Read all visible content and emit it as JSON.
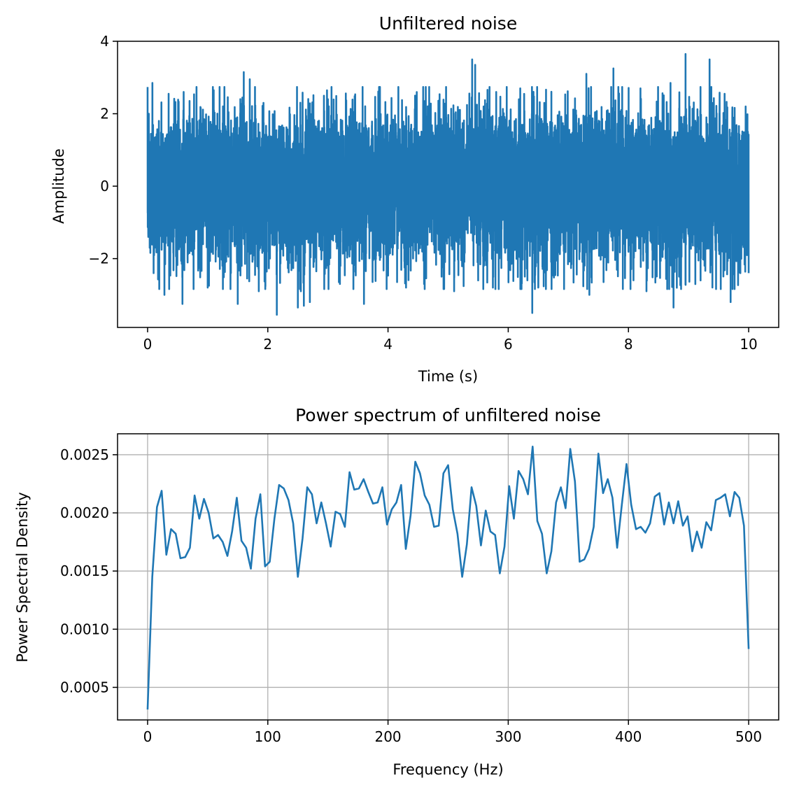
{
  "colors": {
    "series": "#1f77b4",
    "grid": "#b0b0b0",
    "axis": "#000000"
  },
  "chart_data": [
    {
      "type": "line",
      "title": "Unfiltered noise",
      "xlabel": "Time (s)",
      "ylabel": "Amplitude",
      "xlim": [
        -0.5,
        10.5
      ],
      "ylim": [
        -3.9,
        4.0
      ],
      "xticks": [
        0,
        2,
        4,
        6,
        8,
        10
      ],
      "xtick_labels": [
        "0",
        "2",
        "4",
        "6",
        "8",
        "10"
      ],
      "yticks": [
        -2,
        0,
        2,
        4
      ],
      "ytick_labels": [
        "−2",
        "0",
        "2",
        "4"
      ],
      "grid": false,
      "series": [
        {
          "x_start": 0,
          "x_end": 10,
          "sample_rate_hz": 1000,
          "typical_range": [
            -2.0,
            2.0
          ],
          "peaks": [
            [
              0.02,
              2.0
            ],
            [
              0.08,
              2.85
            ],
            [
              0.35,
              2.55
            ],
            [
              0.6,
              2.6
            ],
            [
              1.1,
              2.65
            ],
            [
              1.6,
              3.15
            ],
            [
              1.7,
              2.95
            ],
            [
              2.55,
              2.85
            ],
            [
              3.0,
              2.4
            ],
            [
              3.6,
              2.55
            ],
            [
              4.45,
              2.5
            ],
            [
              5.4,
              3.5
            ],
            [
              5.45,
              3.35
            ],
            [
              5.8,
              2.6
            ],
            [
              6.2,
              2.7
            ],
            [
              6.6,
              2.3
            ],
            [
              7.3,
              3.1
            ],
            [
              7.75,
              3.25
            ],
            [
              8.2,
              2.7
            ],
            [
              8.7,
              2.85
            ],
            [
              8.95,
              3.65
            ],
            [
              9.35,
              3.5
            ],
            [
              9.6,
              2.55
            ],
            [
              9.95,
              2.2
            ]
          ],
          "troughs": [
            [
              0.1,
              -2.4
            ],
            [
              0.28,
              -3.0
            ],
            [
              0.58,
              -3.25
            ],
            [
              1.0,
              -2.8
            ],
            [
              1.5,
              -3.25
            ],
            [
              1.85,
              -2.9
            ],
            [
              2.15,
              -3.55
            ],
            [
              2.5,
              -3.35
            ],
            [
              2.55,
              -2.9
            ],
            [
              2.6,
              -3.3
            ],
            [
              2.7,
              -3.2
            ],
            [
              3.2,
              -2.7
            ],
            [
              3.6,
              -3.25
            ],
            [
              4.3,
              -2.8
            ],
            [
              4.6,
              -2.7
            ],
            [
              5.1,
              -2.9
            ],
            [
              5.5,
              -2.6
            ],
            [
              6.4,
              -3.5
            ],
            [
              6.5,
              -2.8
            ],
            [
              7.35,
              -3.0
            ],
            [
              8.3,
              -2.9
            ],
            [
              8.75,
              -3.35
            ],
            [
              9.2,
              -2.6
            ],
            [
              9.7,
              -3.2
            ],
            [
              10.0,
              -2.4
            ]
          ]
        }
      ]
    },
    {
      "type": "line",
      "title": "Power spectrum of unfiltered noise",
      "xlabel": "Frequency (Hz)",
      "ylabel": "Power Spectral Density",
      "xlim": [
        -25,
        525
      ],
      "ylim": [
        0.00022,
        0.00268
      ],
      "xticks": [
        0,
        100,
        200,
        300,
        400,
        500
      ],
      "xtick_labels": [
        "0",
        "100",
        "200",
        "300",
        "400",
        "500"
      ],
      "yticks": [
        0.0005,
        0.001,
        0.0015,
        0.002,
        0.0025
      ],
      "ytick_labels": [
        "0.0005",
        "0.0010",
        "0.0015",
        "0.0020",
        "0.0025"
      ],
      "grid": true,
      "series": [
        {
          "x": [
            0,
            3.9,
            7.8,
            11.7,
            15.6,
            19.5,
            23.4,
            27.3,
            31.3,
            35.2,
            39.1,
            43.0,
            46.9,
            50.8,
            54.7,
            58.6,
            62.5,
            66.4,
            70.3,
            74.2,
            78.1,
            82.0,
            85.9,
            89.8,
            93.8,
            97.7,
            101.6,
            105.5,
            109.4,
            113.3,
            117.2,
            121.1,
            125.0,
            128.9,
            132.8,
            136.7,
            140.6,
            144.5,
            148.4,
            152.3,
            156.3,
            160.2,
            164.1,
            168.0,
            171.9,
            175.8,
            179.7,
            183.6,
            187.5,
            191.4,
            195.3,
            199.2,
            203.1,
            207.0,
            210.9,
            214.8,
            218.8,
            222.7,
            226.6,
            230.5,
            234.4,
            238.3,
            242.2,
            246.1,
            250.0,
            253.9,
            257.8,
            261.7,
            265.6,
            269.5,
            273.4,
            277.3,
            281.3,
            285.2,
            289.1,
            293.0,
            296.9,
            300.8,
            304.7,
            308.6,
            312.5,
            316.4,
            320.3,
            324.2,
            328.1,
            332.0,
            335.9,
            339.8,
            343.8,
            347.7,
            351.6,
            355.5,
            359.4,
            363.3,
            367.2,
            371.1,
            375.0,
            378.9,
            382.8,
            386.7,
            390.6,
            394.5,
            398.4,
            402.3,
            406.3,
            410.2,
            414.1,
            418.0,
            421.9,
            425.8,
            429.7,
            433.6,
            437.5,
            441.4,
            445.3,
            449.2,
            453.1,
            457.0,
            460.9,
            464.8,
            468.8,
            472.7,
            476.6,
            480.5,
            484.4,
            488.3,
            492.2,
            496.1,
            500.0
          ],
          "values": [
            0.00031,
            0.00145,
            0.00205,
            0.00219,
            0.00164,
            0.00186,
            0.00182,
            0.00161,
            0.00162,
            0.0017,
            0.00215,
            0.00195,
            0.00212,
            0.002,
            0.00178,
            0.00181,
            0.00175,
            0.00163,
            0.00184,
            0.00213,
            0.00176,
            0.0017,
            0.00152,
            0.00195,
            0.00216,
            0.00154,
            0.00158,
            0.00195,
            0.00224,
            0.00221,
            0.00211,
            0.00191,
            0.00145,
            0.00178,
            0.00222,
            0.00216,
            0.00191,
            0.00209,
            0.00191,
            0.00171,
            0.00201,
            0.00199,
            0.00188,
            0.00235,
            0.0022,
            0.00221,
            0.00229,
            0.00218,
            0.00208,
            0.00209,
            0.00222,
            0.0019,
            0.00203,
            0.00209,
            0.00224,
            0.00169,
            0.00198,
            0.00244,
            0.00234,
            0.00215,
            0.00207,
            0.00188,
            0.00189,
            0.00234,
            0.00241,
            0.00203,
            0.00182,
            0.00145,
            0.00173,
            0.00222,
            0.00206,
            0.00172,
            0.00202,
            0.00184,
            0.00181,
            0.00148,
            0.00171,
            0.00223,
            0.00195,
            0.00236,
            0.00229,
            0.00216,
            0.00257,
            0.00193,
            0.00182,
            0.00148,
            0.00167,
            0.00209,
            0.00222,
            0.00204,
            0.00255,
            0.00227,
            0.00158,
            0.0016,
            0.00169,
            0.00188,
            0.00251,
            0.00217,
            0.00229,
            0.00213,
            0.0017,
            0.00207,
            0.00242,
            0.00207,
            0.00186,
            0.00188,
            0.00183,
            0.00191,
            0.00214,
            0.00217,
            0.0019,
            0.00209,
            0.00191,
            0.0021,
            0.00189,
            0.00197,
            0.00167,
            0.00184,
            0.0017,
            0.00192,
            0.00185,
            0.00211,
            0.00213,
            0.00216,
            0.00197,
            0.00218,
            0.00213,
            0.00189,
            0.00083
          ]
        }
      ]
    }
  ]
}
